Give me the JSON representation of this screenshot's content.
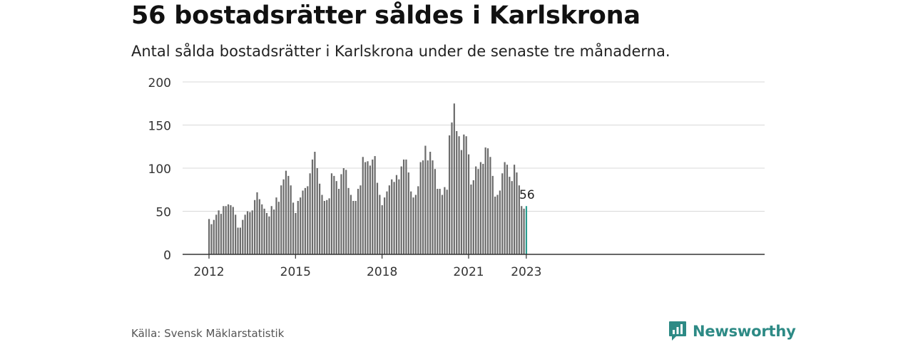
{
  "header": {
    "title": "56 bostadsrätter såldes i Karlskrona",
    "subtitle": "Antal sålda bostadsrätter i Karlskrona under de senaste tre månaderna."
  },
  "footer": {
    "source": "Källa: Svensk Mäklarstatistik",
    "brand": "Newsworthy"
  },
  "colors": {
    "bar": "#6b6b6b",
    "highlight": "#2a9d8f",
    "grid": "#d9d9d9",
    "axis": "#333333",
    "brand": "#2d8a85"
  },
  "chart_data": {
    "type": "bar",
    "x_start": "2012-01",
    "interval": "month",
    "ylim": [
      0,
      200
    ],
    "yticks": [
      0,
      50,
      100,
      150,
      200
    ],
    "xticks": [
      {
        "month": "2012-01",
        "label": "2012"
      },
      {
        "month": "2015-01",
        "label": "2015"
      },
      {
        "month": "2018-01",
        "label": "2018"
      },
      {
        "month": "2021-01",
        "label": "2021"
      },
      {
        "month": "2023-01",
        "label": "2023"
      }
    ],
    "values": [
      41,
      35,
      40,
      46,
      51,
      47,
      56,
      56,
      58,
      57,
      55,
      46,
      31,
      31,
      40,
      46,
      50,
      49,
      51,
      63,
      72,
      64,
      58,
      53,
      48,
      44,
      56,
      52,
      66,
      61,
      80,
      87,
      97,
      91,
      80,
      60,
      48,
      62,
      66,
      74,
      77,
      79,
      94,
      110,
      119,
      100,
      82,
      69,
      62,
      63,
      65,
      94,
      91,
      85,
      76,
      93,
      100,
      98,
      77,
      69,
      62,
      62,
      76,
      80,
      113,
      107,
      108,
      103,
      110,
      114,
      83,
      69,
      57,
      66,
      73,
      80,
      87,
      84,
      92,
      87,
      102,
      110,
      110,
      95,
      73,
      66,
      69,
      79,
      107,
      109,
      126,
      109,
      119,
      109,
      99,
      76,
      76,
      69,
      78,
      75,
      138,
      153,
      175,
      143,
      137,
      121,
      139,
      137,
      116,
      81,
      86,
      102,
      99,
      107,
      105,
      124,
      123,
      113,
      91,
      67,
      69,
      74,
      94,
      107,
      104,
      90,
      85,
      104,
      95,
      80,
      56,
      53,
      56
    ],
    "highlight": {
      "month": "2023-01",
      "value": 56,
      "label": "56"
    }
  }
}
